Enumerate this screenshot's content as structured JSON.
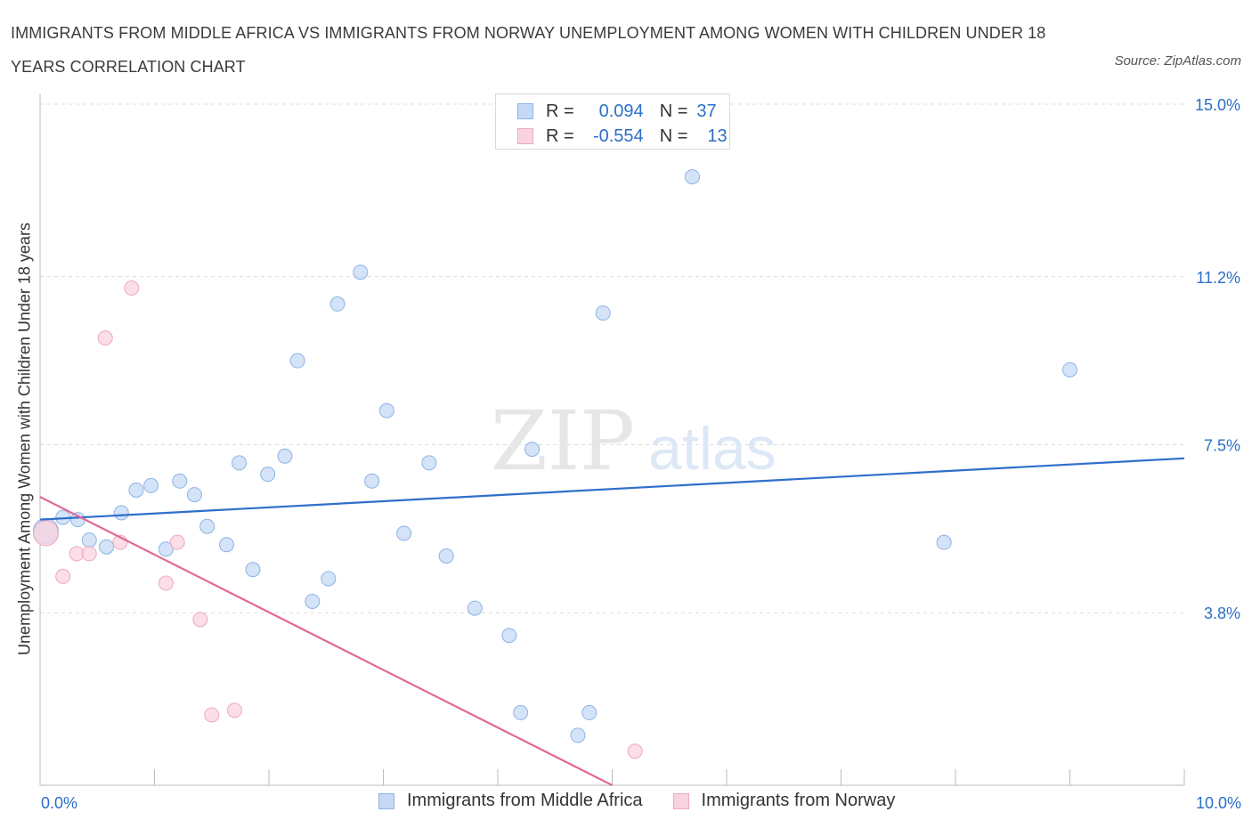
{
  "title": "IMMIGRANTS FROM MIDDLE AFRICA VS IMMIGRANTS FROM NORWAY UNEMPLOYMENT AMONG WOMEN WITH CHILDREN UNDER 18 YEARS CORRELATION CHART",
  "source": "Source: ZipAtlas.com",
  "watermark": {
    "zip": "ZIP",
    "atlas": "atlas"
  },
  "legend": {
    "series1": {
      "r_label": "R =",
      "r_value": "0.094",
      "n_label": "N =",
      "n_value": "37"
    },
    "series2": {
      "r_label": "R =",
      "r_value": "-0.554",
      "n_label": "N =",
      "n_value": "13"
    }
  },
  "colors": {
    "blue_fill": "#c5d9f4",
    "blue_stroke": "#8db3e6",
    "blue_line": "#2f6fcb",
    "pink_fill": "#f9d3df",
    "pink_stroke": "#eea8bf",
    "pink_line": "#e26a95",
    "tick_text": "#2a6fc9",
    "grid": "#dcdcdc"
  },
  "chart_data": {
    "type": "scatter",
    "title": "IMMIGRANTS FROM MIDDLE AFRICA VS IMMIGRANTS FROM NORWAY UNEMPLOYMENT AMONG WOMEN WITH CHILDREN UNDER 18 YEARS CORRELATION CHART",
    "xlabel": "",
    "ylabel": "Unemployment Among Women with Children Under 18 years",
    "xlim": [
      0,
      10
    ],
    "ylim": [
      0,
      15
    ],
    "x_tick_labels": [
      {
        "value": 0,
        "label": "0.0%"
      },
      {
        "value": 10,
        "label": "10.0%"
      }
    ],
    "y_tick_labels": [
      {
        "value": 3.8,
        "label": "3.8%"
      },
      {
        "value": 7.5,
        "label": "7.5%"
      },
      {
        "value": 11.2,
        "label": "11.2%"
      },
      {
        "value": 15.0,
        "label": "15.0%"
      }
    ],
    "grid": true,
    "legend_position": "top-center",
    "series": [
      {
        "name": "Immigrants from Middle Africa",
        "color": "#8db3e6",
        "points": [
          [
            0.05,
            5.6
          ],
          [
            0.2,
            5.9
          ],
          [
            0.33,
            5.85
          ],
          [
            0.43,
            5.4
          ],
          [
            0.58,
            5.25
          ],
          [
            0.71,
            6.0
          ],
          [
            0.84,
            6.5
          ],
          [
            0.97,
            6.6
          ],
          [
            1.1,
            5.2
          ],
          [
            1.22,
            6.7
          ],
          [
            1.35,
            6.4
          ],
          [
            1.46,
            5.7
          ],
          [
            1.63,
            5.3
          ],
          [
            1.74,
            7.1
          ],
          [
            1.86,
            4.75
          ],
          [
            1.99,
            6.85
          ],
          [
            2.14,
            7.25
          ],
          [
            2.25,
            9.35
          ],
          [
            2.38,
            4.05
          ],
          [
            2.52,
            4.55
          ],
          [
            2.6,
            10.6
          ],
          [
            2.8,
            11.3
          ],
          [
            2.9,
            6.7
          ],
          [
            3.03,
            8.25
          ],
          [
            3.18,
            5.55
          ],
          [
            3.4,
            7.1
          ],
          [
            3.55,
            5.05
          ],
          [
            3.8,
            3.9
          ],
          [
            4.1,
            3.3
          ],
          [
            4.2,
            1.6
          ],
          [
            4.3,
            7.4
          ],
          [
            4.7,
            1.1
          ],
          [
            4.8,
            1.6
          ],
          [
            4.92,
            10.4
          ],
          [
            5.7,
            13.4
          ],
          [
            7.9,
            5.35
          ],
          [
            9.0,
            9.15
          ]
        ],
        "trend": {
          "x": [
            0,
            10
          ],
          "y": [
            5.85,
            7.2
          ]
        }
      },
      {
        "name": "Immigrants from Norway",
        "color": "#eea8bf",
        "points": [
          [
            0.05,
            5.55
          ],
          [
            0.2,
            4.6
          ],
          [
            0.32,
            5.1
          ],
          [
            0.43,
            5.1
          ],
          [
            0.57,
            9.85
          ],
          [
            0.7,
            5.35
          ],
          [
            0.8,
            10.95
          ],
          [
            1.1,
            4.45
          ],
          [
            1.2,
            5.35
          ],
          [
            1.4,
            3.65
          ],
          [
            1.5,
            1.55
          ],
          [
            1.7,
            1.65
          ],
          [
            5.2,
            0.75
          ]
        ],
        "trend": {
          "x": [
            0,
            5.0
          ],
          "y": [
            6.35,
            0
          ]
        }
      }
    ]
  },
  "bottom_legend": [
    "Immigrants from Middle Africa",
    "Immigrants from Norway"
  ]
}
